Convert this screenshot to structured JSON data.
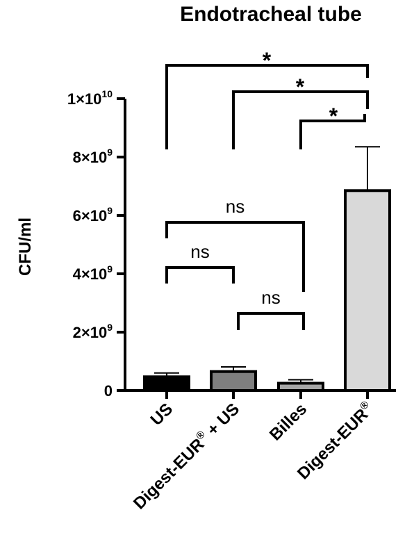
{
  "chart_data": {
    "type": "bar",
    "title": "Endotracheal tube",
    "ylabel": "CFU/ml",
    "xlabel": "",
    "ylim": [
      0,
      10000000000
    ],
    "yticks": [
      {
        "value": 0,
        "mantissa": "0",
        "exponent": ""
      },
      {
        "value": 2000000000,
        "mantissa": "2×10",
        "exponent": "9"
      },
      {
        "value": 4000000000,
        "mantissa": "4×10",
        "exponent": "9"
      },
      {
        "value": 6000000000,
        "mantissa": "6×10",
        "exponent": "9"
      },
      {
        "value": 8000000000,
        "mantissa": "8×10",
        "exponent": "9"
      },
      {
        "value": 10000000000,
        "mantissa": "1×10",
        "exponent": "10"
      }
    ],
    "categories": [
      {
        "label": "US",
        "label_suffix": "",
        "registered": false,
        "value": 470000000,
        "error": 130000000,
        "color": "#000000"
      },
      {
        "label": "Digest-EUR",
        "label_suffix": " + US",
        "registered": true,
        "value": 650000000,
        "error": 160000000,
        "color": "#7f7f7f"
      },
      {
        "label": "Billes",
        "label_suffix": "",
        "registered": false,
        "value": 250000000,
        "error": 120000000,
        "color": "#a6a6a6"
      },
      {
        "label": "Digest-EUR",
        "label_suffix": "",
        "registered": true,
        "value": 6850000000,
        "error": 1500000000,
        "color": "#d9d9d9"
      }
    ],
    "registered_mark": "®",
    "comparisons": [
      {
        "from": 0,
        "to": 3,
        "label": "*"
      },
      {
        "from": 1,
        "to": 3,
        "label": "*"
      },
      {
        "from": 2,
        "to": 3,
        "label": "*"
      },
      {
        "from": 0,
        "to": 2,
        "label": "ns"
      },
      {
        "from": 0,
        "to": 1,
        "label": "ns"
      },
      {
        "from": 1,
        "to": 2,
        "label": "ns"
      }
    ]
  }
}
